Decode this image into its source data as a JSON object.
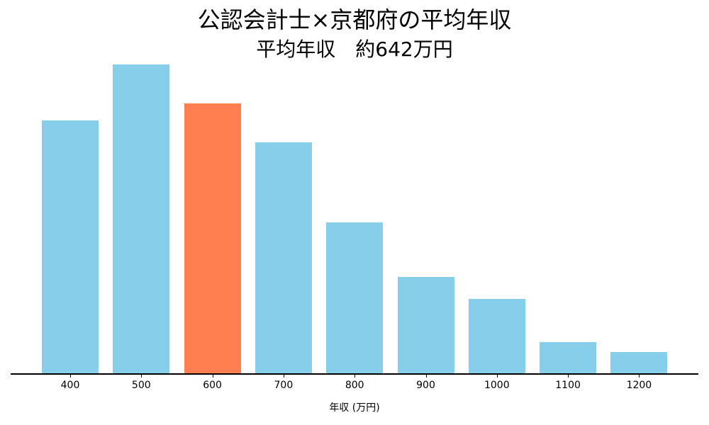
{
  "chart_data": {
    "type": "bar",
    "title": "公認会計士×京都府の平均年収",
    "subtitle": "平均年収　約642万円",
    "xlabel": "年収 (万円)",
    "ylabel": "",
    "categories": [
      "400",
      "500",
      "600",
      "700",
      "800",
      "900",
      "1000",
      "1100",
      "1200"
    ],
    "values": [
      358,
      437,
      382,
      327,
      214,
      137,
      106,
      45,
      31
    ],
    "value_note": "relative bar heights (no y-axis shown); units in pixels",
    "highlight_category": "600",
    "colors": {
      "default": "#87ceeb",
      "highlight": "#ff7f50"
    },
    "ylim": [
      0,
      460
    ],
    "grid": false,
    "legend": null
  }
}
